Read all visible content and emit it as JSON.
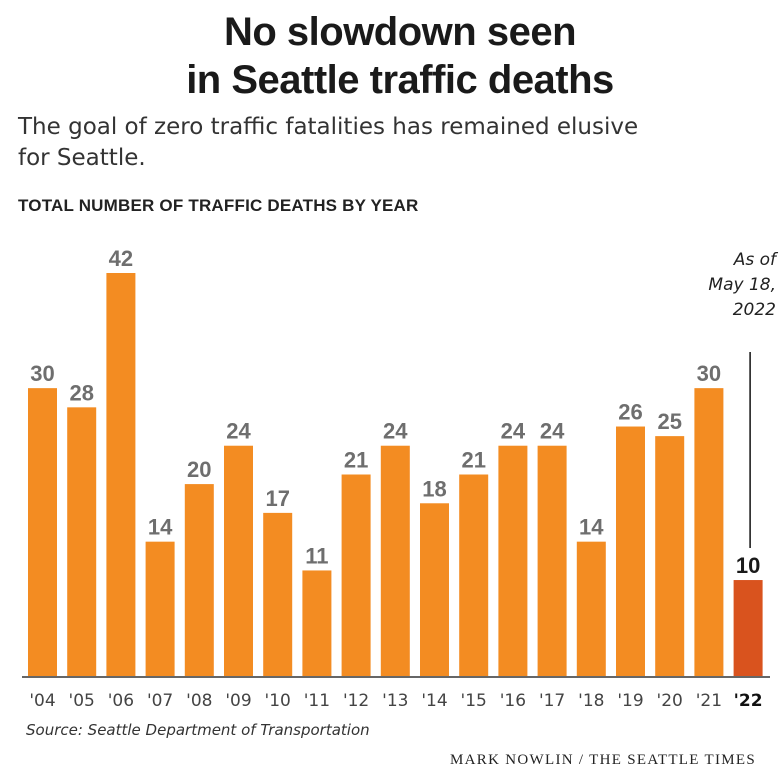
{
  "header": {
    "title_line1": "No slowdown seen",
    "title_line2": "in Seattle traffic deaths",
    "subtitle_line1": "The goal of zero traffic fatalities has remained elusive",
    "subtitle_line2": "for Seattle."
  },
  "colors": {
    "bar": "#F38C22",
    "bar_highlight": "#D9531E",
    "value_label": "#6E6E6E",
    "value_label_highlight": "#1A1A1A",
    "axis": "#333333"
  },
  "annotation": {
    "line1": "As of",
    "line2": "May 18,",
    "line3": "2022"
  },
  "footer": {
    "source": "Source: Seattle Department of Transportation",
    "credit": "MARK NOWLIN / THE SEATTLE TIMES"
  },
  "chart_data": {
    "type": "bar",
    "title": "TOTAL NUMBER OF TRAFFIC DEATHS BY YEAR",
    "categories": [
      "'04",
      "'05",
      "'06",
      "'07",
      "'08",
      "'09",
      "'10",
      "'11",
      "'12",
      "'13",
      "'14",
      "'15",
      "'16",
      "'17",
      "'18",
      "'19",
      "'20",
      "'21",
      "'22"
    ],
    "values": [
      30,
      28,
      42,
      14,
      20,
      24,
      17,
      11,
      21,
      24,
      18,
      21,
      24,
      24,
      14,
      26,
      25,
      30,
      10
    ],
    "highlight_category": "'22",
    "ylim": [
      0,
      42
    ],
    "grid": false,
    "data_labels": true
  }
}
